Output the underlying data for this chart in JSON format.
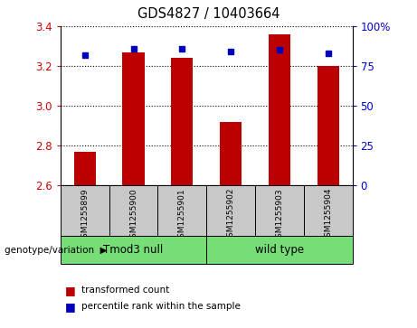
{
  "title": "GDS4827 / 10403664",
  "samples": [
    "GSM1255899",
    "GSM1255900",
    "GSM1255901",
    "GSM1255902",
    "GSM1255903",
    "GSM1255904"
  ],
  "bar_values": [
    2.77,
    3.27,
    3.24,
    2.92,
    3.36,
    3.2
  ],
  "percentile_values": [
    82,
    86,
    86,
    84,
    85,
    83
  ],
  "ylim_left": [
    2.6,
    3.4
  ],
  "ylim_right": [
    0,
    100
  ],
  "yticks_left": [
    2.6,
    2.8,
    3.0,
    3.2,
    3.4
  ],
  "yticks_right": [
    0,
    25,
    50,
    75,
    100
  ],
  "ytick_labels_right": [
    "0",
    "25",
    "50",
    "75",
    "100%"
  ],
  "groups": [
    {
      "label": "Tmod3 null",
      "start": 0,
      "end": 3,
      "color": "#77DD77"
    },
    {
      "label": "wild type",
      "start": 3,
      "end": 6,
      "color": "#77DD77"
    }
  ],
  "bar_color": "#BB0000",
  "dot_color": "#0000BB",
  "bar_width": 0.45,
  "grid_color": "#000000",
  "plot_bg_color": "#FFFFFF",
  "genotype_label": "genotype/variation",
  "legend_items": [
    {
      "color": "#BB0000",
      "label": "transformed count"
    },
    {
      "color": "#0000BB",
      "label": "percentile rank within the sample"
    }
  ],
  "tick_color_left": "#CC0000",
  "tick_color_right": "#0000CC",
  "group_bg_color": "#C8C8C8"
}
